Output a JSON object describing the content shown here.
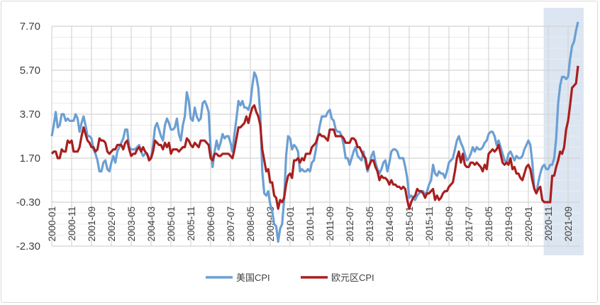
{
  "chart_data": {
    "type": "line",
    "title": "",
    "xlabel": "",
    "ylabel": "",
    "x_first": "2000-01",
    "x_last": "2022-02",
    "x_frequency": "monthly",
    "x_tick_labels": [
      "2000-01",
      "2000-11",
      "2001-09",
      "2002-07",
      "2003-05",
      "2004-03",
      "2005-01",
      "2005-11",
      "2006-09",
      "2007-07",
      "2008-05",
      "2009-03",
      "2010-01",
      "2010-11",
      "2011-09",
      "2012-07",
      "2013-05",
      "2014-03",
      "2015-01",
      "2015-11",
      "2016-09",
      "2017-07",
      "2018-05",
      "2019-03",
      "2020-01",
      "2020-11",
      "2021-09"
    ],
    "y_tick_labels": [
      "7.70",
      "5.70",
      "3.70",
      "1.70",
      "-0.30",
      "-2.30"
    ],
    "ylim": [
      -2.3,
      7.7
    ],
    "grid": true,
    "legend_position": "bottom",
    "highlight_range": [
      "2020-08",
      "2022-02"
    ],
    "highlight_color": "#dce6f2",
    "series": [
      {
        "name": "美国CPI",
        "color": "#6b9fd3",
        "values": [
          2.7,
          3.2,
          3.8,
          3.1,
          3.2,
          3.7,
          3.7,
          3.4,
          3.5,
          3.4,
          3.4,
          3.4,
          3.7,
          3.5,
          2.9,
          3.3,
          3.6,
          3.2,
          2.7,
          2.7,
          2.6,
          2.1,
          1.9,
          1.6,
          1.1,
          1.1,
          1.5,
          1.6,
          1.2,
          1.1,
          1.5,
          1.8,
          1.5,
          2.0,
          2.2,
          2.4,
          2.6,
          3.0,
          3.0,
          2.2,
          2.1,
          2.1,
          2.1,
          2.2,
          2.3,
          2.0,
          1.8,
          1.9,
          1.9,
          1.7,
          1.7,
          2.3,
          3.1,
          3.3,
          3.0,
          2.7,
          2.5,
          3.2,
          3.5,
          3.3,
          3.0,
          3.0,
          3.1,
          3.5,
          2.8,
          2.5,
          3.2,
          3.6,
          4.7,
          4.3,
          3.5,
          3.4,
          4.0,
          3.6,
          3.4,
          3.5,
          4.2,
          4.3,
          4.1,
          3.8,
          2.1,
          1.3,
          2.0,
          2.5,
          2.1,
          2.4,
          2.8,
          2.6,
          2.7,
          2.7,
          2.4,
          2.0,
          2.8,
          3.5,
          4.3,
          4.1,
          4.3,
          4.0,
          4.0,
          3.9,
          4.2,
          5.0,
          5.6,
          5.4,
          4.9,
          3.7,
          1.1,
          0.1,
          0.0,
          0.2,
          -0.4,
          -0.7,
          -1.3,
          -1.4,
          -2.1,
          -1.5,
          -1.3,
          -0.2,
          1.8,
          2.7,
          2.6,
          2.1,
          2.3,
          2.2,
          2.0,
          1.1,
          1.2,
          1.1,
          1.1,
          1.2,
          1.1,
          1.5,
          1.6,
          2.1,
          2.7,
          3.2,
          3.6,
          3.6,
          3.6,
          3.8,
          3.9,
          3.5,
          3.4,
          3.0,
          2.9,
          2.9,
          2.7,
          2.3,
          1.7,
          1.7,
          1.4,
          1.7,
          2.0,
          2.2,
          1.8,
          1.7,
          1.6,
          2.0,
          1.5,
          1.1,
          1.4,
          1.8,
          2.0,
          1.5,
          1.2,
          1.0,
          1.2,
          1.5,
          1.6,
          1.1,
          1.5,
          2.0,
          2.1,
          2.1,
          2.0,
          1.7,
          1.7,
          1.7,
          1.3,
          0.8,
          -0.1,
          0.0,
          -0.1,
          -0.2,
          0.0,
          0.1,
          0.2,
          0.2,
          0.0,
          0.2,
          0.5,
          0.7,
          1.4,
          1.0,
          0.9,
          1.1,
          1.0,
          1.0,
          0.8,
          1.1,
          1.5,
          1.6,
          1.7,
          2.1,
          2.5,
          2.7,
          2.4,
          2.2,
          1.9,
          1.6,
          1.7,
          1.9,
          2.2,
          2.0,
          2.2,
          2.1,
          2.1,
          2.2,
          2.4,
          2.5,
          2.8,
          2.9,
          2.9,
          2.7,
          2.3,
          2.5,
          2.2,
          1.9,
          1.6,
          1.5,
          1.9,
          2.0,
          1.8,
          1.6,
          1.8,
          1.7,
          1.7,
          1.8,
          2.1,
          2.3,
          2.5,
          2.3,
          1.5,
          0.3,
          0.1,
          0.6,
          1.0,
          1.3,
          1.4,
          1.2,
          1.2,
          1.4,
          1.4,
          1.7,
          2.6,
          4.2,
          5.0,
          5.4,
          5.4,
          5.3,
          5.4,
          6.2,
          6.8,
          7.0,
          7.5,
          7.9
        ]
      },
      {
        "name": "欧元区CPI",
        "color": "#a81f1f",
        "values": [
          1.9,
          2.0,
          2.0,
          1.7,
          1.7,
          2.1,
          2.0,
          2.0,
          2.5,
          2.4,
          2.5,
          2.0,
          2.0,
          2.0,
          2.2,
          2.7,
          3.1,
          2.8,
          2.5,
          2.4,
          2.2,
          2.2,
          2.0,
          2.1,
          2.6,
          2.5,
          2.5,
          2.4,
          2.0,
          1.9,
          2.0,
          2.1,
          2.1,
          2.3,
          2.3,
          2.3,
          2.1,
          2.4,
          2.5,
          2.1,
          1.8,
          1.9,
          1.9,
          2.1,
          2.2,
          2.0,
          2.2,
          2.0,
          1.9,
          1.6,
          1.7,
          2.0,
          2.5,
          2.4,
          2.3,
          2.3,
          2.1,
          2.4,
          2.2,
          2.4,
          1.9,
          2.1,
          2.1,
          2.1,
          2.0,
          2.1,
          2.2,
          2.2,
          2.6,
          2.5,
          2.3,
          2.2,
          2.4,
          2.3,
          2.2,
          2.5,
          2.5,
          2.5,
          2.4,
          2.3,
          1.7,
          1.6,
          1.9,
          1.9,
          1.8,
          1.8,
          1.9,
          1.9,
          1.9,
          1.9,
          1.8,
          1.7,
          2.1,
          2.6,
          3.1,
          3.1,
          3.2,
          3.3,
          3.6,
          3.3,
          3.7,
          4.0,
          4.1,
          3.8,
          3.6,
          3.2,
          2.1,
          1.6,
          1.1,
          1.2,
          0.6,
          0.6,
          0.0,
          -0.1,
          -0.6,
          -0.2,
          -0.3,
          -0.1,
          0.5,
          0.9,
          1.0,
          0.8,
          1.6,
          1.6,
          1.7,
          1.5,
          1.7,
          1.6,
          1.9,
          1.9,
          1.9,
          2.2,
          2.3,
          2.4,
          2.7,
          2.8,
          2.7,
          2.7,
          2.6,
          2.5,
          3.0,
          3.0,
          3.0,
          2.7,
          2.7,
          2.7,
          2.7,
          2.6,
          2.4,
          2.4,
          2.4,
          2.6,
          2.6,
          2.5,
          2.2,
          2.2,
          2.0,
          1.8,
          1.7,
          1.2,
          1.4,
          1.6,
          1.6,
          1.3,
          1.1,
          0.7,
          0.9,
          0.8,
          0.8,
          0.7,
          0.5,
          0.7,
          0.5,
          0.5,
          0.4,
          0.4,
          0.3,
          0.4,
          0.3,
          -0.2,
          -0.6,
          -0.3,
          -0.1,
          0.0,
          0.3,
          0.2,
          0.2,
          0.1,
          -0.1,
          0.1,
          0.1,
          0.2,
          0.3,
          -0.2,
          0.0,
          -0.2,
          -0.1,
          0.1,
          0.2,
          0.2,
          0.4,
          0.5,
          0.6,
          1.1,
          1.7,
          2.0,
          1.5,
          1.9,
          1.4,
          1.3,
          1.3,
          1.5,
          1.5,
          1.4,
          1.5,
          1.4,
          1.3,
          1.1,
          1.4,
          1.2,
          1.9,
          2.0,
          2.1,
          2.0,
          2.1,
          2.3,
          1.9,
          1.5,
          1.4,
          1.5,
          1.4,
          1.7,
          1.2,
          1.3,
          1.0,
          1.0,
          0.8,
          0.7,
          1.0,
          1.3,
          1.4,
          1.2,
          0.7,
          0.3,
          0.1,
          0.3,
          0.4,
          -0.2,
          -0.3,
          -0.3,
          -0.3,
          -0.3,
          0.9,
          0.9,
          1.3,
          1.6,
          2.0,
          1.9,
          2.2,
          3.0,
          3.4,
          4.1,
          4.9,
          5.0,
          5.1,
          5.9
        ]
      }
    ]
  }
}
